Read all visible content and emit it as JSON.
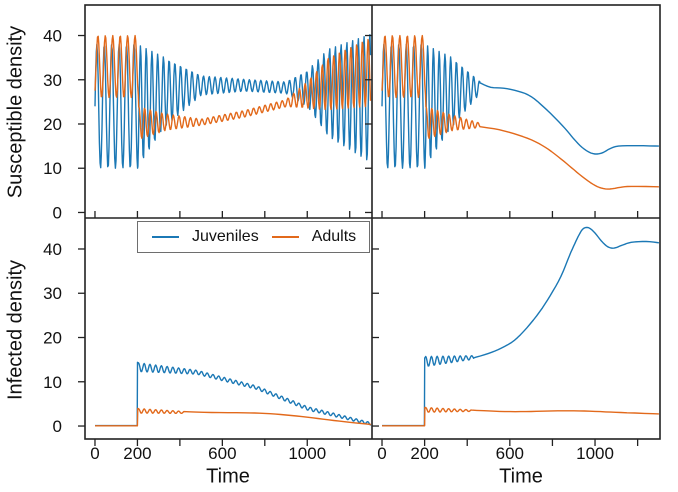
{
  "figure": {
    "background": "#ffffff"
  },
  "chart_data": {
    "type": "line",
    "layout": {
      "grid": "2x2",
      "shared_x_axis": true,
      "rows": [
        "Susceptible density",
        "Infected density"
      ],
      "legend_position": "top of bottom-left panel",
      "grid_lines": "off"
    },
    "x_axis": {
      "label": "Time",
      "range": [
        -47,
        1305
      ],
      "ticks": [
        0,
        200,
        400,
        600,
        800,
        1000,
        1200
      ],
      "labeled_ticks": [
        {
          "value": 0,
          "label": "0"
        },
        {
          "value": 200,
          "label": "200"
        },
        {
          "value": 600,
          "label": "600"
        },
        {
          "value": 1000,
          "label": "1000"
        }
      ]
    },
    "y_axes": {
      "top": {
        "label": "Susceptible density",
        "range": [
          -1.25,
          46.9
        ],
        "ticks": [
          {
            "value": 0,
            "label": "0"
          },
          {
            "value": 10,
            "label": "10"
          },
          {
            "value": 20,
            "label": "20"
          },
          {
            "value": 30,
            "label": "30"
          },
          {
            "value": 40,
            "label": "40"
          }
        ]
      },
      "bottom": {
        "label": "Infected density",
        "range": [
          -2.93,
          47
        ],
        "ticks": [
          {
            "value": 0,
            "label": "0"
          },
          {
            "value": 10,
            "label": "10"
          },
          {
            "value": 20,
            "label": "20"
          },
          {
            "value": 30,
            "label": "30"
          },
          {
            "value": 40,
            "label": "40"
          }
        ]
      }
    },
    "legend": {
      "entries": [
        {
          "name": "juveniles",
          "label": "Juveniles",
          "color": "#1b78b5"
        },
        {
          "name": "adults",
          "label": "Adults",
          "color": "#e2691b"
        }
      ]
    },
    "style": {
      "spine_color": "#222222",
      "tick_color": "#222222",
      "text_color": "#111111",
      "curve_width": 1.4
    },
    "note_on_segments": "osc = [t0,t1,period,phase,lo0,hi0,lo1,hi1] oscillation between linearly-interpolated envelopes; pts = sampled [time,value] anchor points read from the figure",
    "panels": [
      {
        "name": "susceptible-left",
        "row": "top",
        "col": "left",
        "series": [
          {
            "name": "juveniles",
            "segments": [
              {
                "osc": [
                  0,
                  201,
                  35,
                  0,
                  10,
                  38,
                  10,
                  38
                ]
              },
              {
                "osc": [
                  202,
                  330,
                  27,
                  1.94,
                  10,
                  38,
                  19.5,
                  35
                ]
              },
              {
                "osc": [
                  330,
                  500,
                  27,
                  1.94,
                  19.5,
                  35,
                  26.5,
                  30.9
                ]
              },
              {
                "osc": [
                  500,
                  700,
                  27,
                  1.94,
                  26.5,
                  30.9,
                  27.4,
                  30.1
                ]
              },
              {
                "osc": [
                  700,
                  900,
                  27,
                  1.94,
                  27.4,
                  30.1,
                  26.9,
                  29.5
                ]
              },
              {
                "osc": [
                  900,
                  1000,
                  27,
                  1.94,
                  26.9,
                  29.5,
                  24,
                  32
                ]
              },
              {
                "osc": [
                  1000,
                  1100,
                  27,
                  1.94,
                  24,
                  32,
                  17,
                  37
                ]
              },
              {
                "osc": [
                  1100,
                  1300,
                  27,
                  1.94,
                  17,
                  37,
                  11,
                  40.4
                ]
              }
            ]
          },
          {
            "name": "adults",
            "segments": [
              {
                "osc": [
                  0,
                  206,
                  35,
                  -0.9,
                  26,
                  40,
                  26,
                  40
                ]
              },
              {
                "osc": [
                  206,
                  330,
                  27,
                  -2.61,
                  16.5,
                  24,
                  18.5,
                  22.3
                ]
              },
              {
                "osc": [
                  330,
                  500,
                  27,
                  -2.61,
                  18.5,
                  22.3,
                  19.7,
                  21.1
                ]
              },
              {
                "osc": [
                  500,
                  700,
                  27,
                  -2.61,
                  19.7,
                  21.1,
                  21.5,
                  23
                ]
              },
              {
                "osc": [
                  700,
                  900,
                  27,
                  -2.61,
                  21.5,
                  23,
                  23.9,
                  25.5
                ]
              },
              {
                "osc": [
                  900,
                  1000,
                  27,
                  -2.61,
                  23.9,
                  25.5,
                  23.6,
                  29.5
                ]
              },
              {
                "osc": [
                  1000,
                  1100,
                  27,
                  -2.61,
                  23.6,
                  29.5,
                  23.2,
                  35
                ]
              },
              {
                "osc": [
                  1100,
                  1300,
                  27,
                  -2.61,
                  23.2,
                  35,
                  24,
                  39.6
                ]
              }
            ]
          }
        ]
      },
      {
        "name": "susceptible-right",
        "row": "top",
        "col": "right",
        "series": [
          {
            "name": "juveniles",
            "segments": [
              {
                "osc": [
                  0,
                  201,
                  35,
                  0,
                  10,
                  38,
                  10,
                  38
                ]
              },
              {
                "osc": [
                  202,
                  330,
                  27,
                  1.94,
                  10,
                  38,
                  19.5,
                  35
                ]
              },
              {
                "osc": [
                  330,
                  460,
                  27,
                  1.94,
                  19.5,
                  35,
                  26.9,
                  29.6
                ]
              },
              {
                "pts": [
                  [
                    460,
                    29.3
                  ],
                  [
                    510,
                    28.3
                  ],
                  [
                    570,
                    28.1
                  ],
                  [
                    640,
                    27.4
                  ],
                  [
                    700,
                    26.2
                  ],
                  [
                    760,
                    23.8
                  ],
                  [
                    820,
                    21
                  ],
                  [
                    870,
                    18.4
                  ],
                  [
                    910,
                    16.1
                  ],
                  [
                    950,
                    14.3
                  ],
                  [
                    990,
                    13.3
                  ],
                  [
                    1030,
                    13.4
                  ],
                  [
                    1070,
                    14.4
                  ],
                  [
                    1110,
                    15
                  ],
                  [
                    1200,
                    15.1
                  ],
                  [
                    1300,
                    15
                  ]
                ]
              }
            ]
          },
          {
            "name": "adults",
            "segments": [
              {
                "osc": [
                  0,
                  206,
                  35,
                  -0.9,
                  26,
                  40,
                  26,
                  40
                ]
              },
              {
                "osc": [
                  206,
                  330,
                  27,
                  -2.61,
                  16.5,
                  24,
                  18.5,
                  22
                ]
              },
              {
                "osc": [
                  330,
                  460,
                  27,
                  -2.61,
                  18.5,
                  22,
                  19.2,
                  20.2
                ]
              },
              {
                "pts": [
                  [
                    460,
                    19.4
                  ],
                  [
                    550,
                    18.7
                  ],
                  [
                    640,
                    17.5
                  ],
                  [
                    720,
                    16
                  ],
                  [
                    780,
                    14.3
                  ],
                  [
                    840,
                    12.1
                  ],
                  [
                    890,
                    10.1
                  ],
                  [
                    940,
                    8.1
                  ],
                  [
                    990,
                    6.4
                  ],
                  [
                    1030,
                    5.5
                  ],
                  [
                    1070,
                    5.3
                  ],
                  [
                    1120,
                    5.7
                  ],
                  [
                    1170,
                    5.9
                  ],
                  [
                    1300,
                    5.8
                  ]
                ]
              }
            ]
          }
        ]
      },
      {
        "name": "infected-left",
        "row": "bottom",
        "col": "left",
        "series": [
          {
            "name": "juveniles",
            "segments": [
              {
                "pts": [
                  [
                    0,
                    0.1
                  ],
                  [
                    199,
                    0.1
                  ],
                  [
                    200.5,
                    14.4
                  ]
                ]
              },
              {
                "osc": [
                  202,
                  480,
                  27,
                  -2.14,
                  12.3,
                  14.3,
                  11.7,
                  12.6
                ]
              },
              {
                "osc": [
                  480,
                  760,
                  27,
                  -2.14,
                  11.7,
                  12.6,
                  8.3,
                  9.1
                ]
              },
              {
                "osc": [
                  760,
                  1000,
                  27,
                  -2.14,
                  8.3,
                  9.1,
                  3.6,
                  4.4
                ]
              },
              {
                "osc": [
                  1000,
                  1300,
                  27,
                  -2.14,
                  3.6,
                  4.4,
                  0.2,
                  0.8
                ]
              }
            ]
          },
          {
            "name": "adults",
            "segments": [
              {
                "pts": [
                  [
                    0,
                    0.05
                  ],
                  [
                    200,
                    0.05
                  ],
                  [
                    201.5,
                    3.95
                  ]
                ]
              },
              {
                "osc": [
                  202,
                  420,
                  27,
                  -2.14,
                  2.9,
                  3.95,
                  2.85,
                  3.3
                ]
              },
              {
                "pts": [
                  [
                    420,
                    3.25
                  ],
                  [
                    550,
                    3.05
                  ],
                  [
                    700,
                    3.0
                  ],
                  [
                    800,
                    2.85
                  ],
                  [
                    900,
                    2.5
                  ],
                  [
                    1000,
                    2.0
                  ],
                  [
                    1100,
                    1.4
                  ],
                  [
                    1200,
                    0.85
                  ],
                  [
                    1300,
                    0.35
                  ]
                ]
              }
            ]
          }
        ]
      },
      {
        "name": "infected-right",
        "row": "bottom",
        "col": "right",
        "series": [
          {
            "name": "juveniles",
            "segments": [
              {
                "pts": [
                  [
                    0,
                    0.1
                  ],
                  [
                    199,
                    0.1
                  ],
                  [
                    200.5,
                    15.4
                  ]
                ]
              },
              {
                "osc": [
                  202,
                  430,
                  27,
                  -2.14,
                  13.4,
                  15.7,
                  15.1,
                  15.9
                ]
              },
              {
                "pts": [
                  [
                    430,
                    15.4
                  ],
                  [
                    500,
                    16.4
                  ],
                  [
                    560,
                    17.6
                  ],
                  [
                    620,
                    19.3
                  ],
                  [
                    680,
                    22.2
                  ],
                  [
                    740,
                    25.8
                  ],
                  [
                    790,
                    29.5
                  ],
                  [
                    840,
                    33.8
                  ],
                  [
                    880,
                    38.5
                  ],
                  [
                    905,
                    41.2
                  ],
                  [
                    925,
                    43.2
                  ],
                  [
                    945,
                    44.6
                  ],
                  [
                    970,
                    44.8
                  ],
                  [
                    1000,
                    43.6
                  ],
                  [
                    1030,
                    41.8
                  ],
                  [
                    1060,
                    40.5
                  ],
                  [
                    1090,
                    40.2
                  ],
                  [
                    1130,
                    40.9
                  ],
                  [
                    1170,
                    41.5
                  ],
                  [
                    1240,
                    41.7
                  ],
                  [
                    1300,
                    41.4
                  ]
                ]
              }
            ]
          },
          {
            "name": "adults",
            "segments": [
              {
                "pts": [
                  [
                    0,
                    0.05
                  ],
                  [
                    200,
                    0.05
                  ],
                  [
                    201.5,
                    4.2
                  ]
                ]
              },
              {
                "osc": [
                  202,
                  420,
                  27,
                  -2.14,
                  3.1,
                  4.2,
                  3.3,
                  3.65
                ]
              },
              {
                "pts": [
                  [
                    420,
                    3.6
                  ],
                  [
                    550,
                    3.3
                  ],
                  [
                    650,
                    3.25
                  ],
                  [
                    750,
                    3.35
                  ],
                  [
                    850,
                    3.45
                  ],
                  [
                    950,
                    3.4
                  ],
                  [
                    1050,
                    3.2
                  ],
                  [
                    1150,
                    3.0
                  ],
                  [
                    1300,
                    2.75
                  ]
                ]
              }
            ]
          }
        ]
      }
    ]
  }
}
